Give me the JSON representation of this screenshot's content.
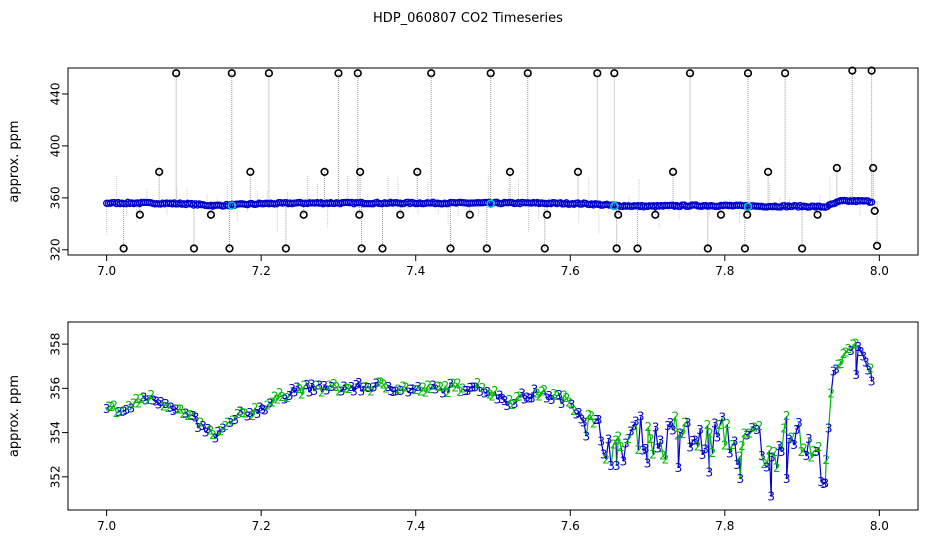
{
  "title": "HDP_060807  CO2 Timeseries",
  "colors": {
    "raw_points": "#000000",
    "raw_lines": "#9a9a9a",
    "smooth_points": "#0000cc",
    "flagged_points": "#00cccc",
    "series_2": "#00bb00",
    "series_3": "#0000cc"
  },
  "chart_data": [
    {
      "type": "scatter",
      "ylabel": "approx. ppm",
      "xlim": [
        6.95,
        8.05
      ],
      "ylim": [
        316,
        460
      ],
      "xticks": [
        "7.0",
        "7.2",
        "7.4",
        "7.6",
        "7.8",
        "8.0"
      ],
      "yticks": [
        "320",
        "360",
        "400",
        "440"
      ],
      "grid": false,
      "series": [
        {
          "baseline": [
            [
              7.0,
              356
            ],
            [
              7.05,
              356
            ],
            [
              7.1,
              355.5
            ],
            [
              7.14,
              354
            ],
            [
              7.2,
              355.5
            ],
            [
              7.25,
              356
            ],
            [
              7.33,
              356
            ],
            [
              7.4,
              356
            ],
            [
              7.48,
              356
            ],
            [
              7.55,
              356
            ],
            [
              7.62,
              355.5
            ],
            [
              7.66,
              354
            ],
            [
              7.7,
              353.5
            ],
            [
              7.75,
              354
            ],
            [
              7.8,
              354
            ],
            [
              7.85,
              353.5
            ],
            [
              7.9,
              353.5
            ],
            [
              7.93,
              353
            ],
            [
              7.95,
              357.5
            ],
            [
              7.98,
              357.5
            ],
            [
              7.99,
              357
            ]
          ],
          "outliers": [
            [
              7.09,
              456
            ],
            [
              7.162,
              456
            ],
            [
              7.21,
              456
            ],
            [
              7.3,
              456
            ],
            [
              7.325,
              456
            ],
            [
              7.42,
              456
            ],
            [
              7.497,
              456
            ],
            [
              7.545,
              456
            ],
            [
              7.635,
              456
            ],
            [
              7.657,
              456
            ],
            [
              7.755,
              456
            ],
            [
              7.83,
              456
            ],
            [
              7.878,
              456
            ],
            [
              7.965,
              458
            ],
            [
              7.99,
              458
            ],
            [
              7.068,
              380
            ],
            [
              7.186,
              380
            ],
            [
              7.282,
              380
            ],
            [
              7.328,
              380
            ],
            [
              7.402,
              380
            ],
            [
              7.522,
              380
            ],
            [
              7.61,
              380
            ],
            [
              7.733,
              380
            ],
            [
              7.856,
              380
            ],
            [
              7.945,
              383
            ],
            [
              7.992,
              383
            ],
            [
              7.043,
              347
            ],
            [
              7.135,
              347
            ],
            [
              7.255,
              347
            ],
            [
              7.327,
              347
            ],
            [
              7.38,
              347
            ],
            [
              7.47,
              347
            ],
            [
              7.57,
              347
            ],
            [
              7.662,
              347
            ],
            [
              7.71,
              347
            ],
            [
              7.795,
              347
            ],
            [
              7.829,
              347
            ],
            [
              7.92,
              347
            ],
            [
              7.994,
              350
            ],
            [
              7.022,
              321
            ],
            [
              7.113,
              321
            ],
            [
              7.159,
              321
            ],
            [
              7.232,
              321
            ],
            [
              7.33,
              321
            ],
            [
              7.357,
              321
            ],
            [
              7.445,
              321
            ],
            [
              7.492,
              321
            ],
            [
              7.567,
              321
            ],
            [
              7.66,
              321
            ],
            [
              7.687,
              321
            ],
            [
              7.778,
              321
            ],
            [
              7.826,
              321
            ],
            [
              7.9,
              321
            ],
            [
              7.997,
              323
            ]
          ]
        }
      ]
    },
    {
      "type": "scatter",
      "ylabel": "approx. ppm",
      "xlim": [
        6.95,
        8.05
      ],
      "ylim": [
        350.5,
        359
      ],
      "xticks": [
        "7.0",
        "7.2",
        "7.4",
        "7.6",
        "7.8",
        "8.0"
      ],
      "yticks": [
        "352",
        "354",
        "356",
        "358"
      ],
      "grid": false,
      "markers": [
        "2",
        "3"
      ],
      "series": [
        {
          "trend": [
            [
              7.0,
              355.2
            ],
            [
              7.02,
              354.9
            ],
            [
              7.05,
              355.6
            ],
            [
              7.08,
              355.3
            ],
            [
              7.11,
              354.6
            ],
            [
              7.14,
              353.8
            ],
            [
              7.17,
              354.7
            ],
            [
              7.2,
              355.1
            ],
            [
              7.24,
              355.9
            ],
            [
              7.28,
              356.0
            ],
            [
              7.32,
              356.0
            ],
            [
              7.36,
              356.1
            ],
            [
              7.4,
              355.9
            ],
            [
              7.44,
              356.0
            ],
            [
              7.48,
              356.1
            ],
            [
              7.52,
              355.4
            ],
            [
              7.56,
              355.8
            ],
            [
              7.6,
              355.4
            ],
            [
              7.62,
              354.5
            ],
            [
              7.64,
              353.8
            ],
            [
              7.66,
              353.0
            ],
            [
              7.68,
              353.9
            ],
            [
              7.7,
              354.0
            ],
            [
              7.72,
              353.3
            ],
            [
              7.74,
              354.3
            ],
            [
              7.76,
              353.5
            ],
            [
              7.78,
              353.7
            ],
            [
              7.8,
              354.0
            ],
            [
              7.82,
              353.0
            ],
            [
              7.84,
              354.1
            ],
            [
              7.86,
              352.4
            ],
            [
              7.88,
              354.6
            ],
            [
              7.9,
              353.5
            ],
            [
              7.92,
              352.8
            ],
            [
              7.93,
              352.3
            ],
            [
              7.94,
              356.6
            ],
            [
              7.96,
              357.7
            ],
            [
              7.97,
              358.2
            ],
            [
              7.98,
              357.3
            ],
            [
              7.99,
              356.8
            ]
          ],
          "dips": [
            [
              7.66,
              352.5
            ],
            [
              7.7,
              352.6
            ],
            [
              7.74,
              352.4
            ],
            [
              7.78,
              352.2
            ],
            [
              7.82,
              351.9
            ],
            [
              7.86,
              351.1
            ],
            [
              7.88,
              351.9
            ],
            [
              7.93,
              351.7
            ],
            [
              7.99,
              356.3
            ],
            [
              7.97,
              356.6
            ]
          ]
        }
      ]
    }
  ]
}
